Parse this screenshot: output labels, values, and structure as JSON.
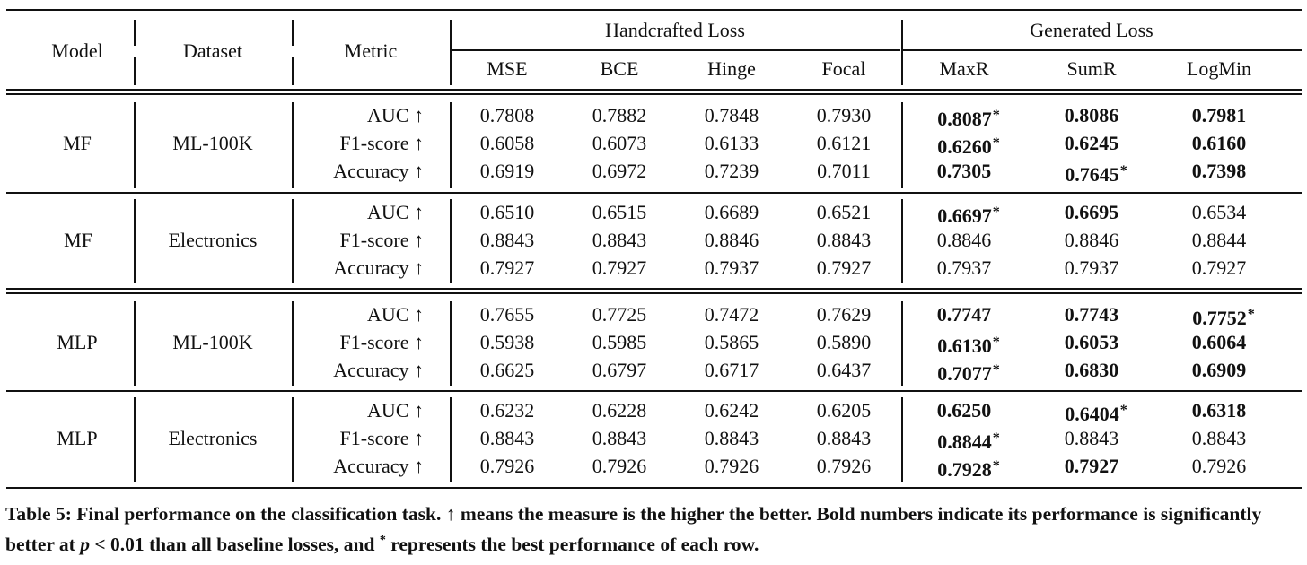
{
  "table": {
    "headers": {
      "model": "Model",
      "dataset": "Dataset",
      "metric": "Metric",
      "group_handcrafted": "Handcrafted Loss",
      "group_generated": "Generated Loss",
      "loss_columns": [
        "MSE",
        "BCE",
        "Hinge",
        "Focal",
        "MaxR",
        "SumR",
        "LogMin"
      ]
    },
    "arrow": "↑",
    "blocks": [
      {
        "model": "MF",
        "dataset": "ML-100K",
        "rows": [
          {
            "metric": "AUC",
            "values": [
              "0.7808",
              "0.7882",
              "0.7848",
              "0.7930",
              "0.8087",
              "0.8086",
              "0.7981"
            ],
            "bold": [
              false,
              false,
              false,
              false,
              true,
              true,
              true
            ],
            "star": [
              false,
              false,
              false,
              false,
              true,
              false,
              false
            ]
          },
          {
            "metric": "F1-score",
            "values": [
              "0.6058",
              "0.6073",
              "0.6133",
              "0.6121",
              "0.6260",
              "0.6245",
              "0.6160"
            ],
            "bold": [
              false,
              false,
              false,
              false,
              true,
              true,
              true
            ],
            "star": [
              false,
              false,
              false,
              false,
              true,
              false,
              false
            ]
          },
          {
            "metric": "Accuracy",
            "values": [
              "0.6919",
              "0.6972",
              "0.7239",
              "0.7011",
              "0.7305",
              "0.7645",
              "0.7398"
            ],
            "bold": [
              false,
              false,
              false,
              false,
              true,
              true,
              true
            ],
            "star": [
              false,
              false,
              false,
              false,
              false,
              true,
              false
            ]
          }
        ]
      },
      {
        "model": "MF",
        "dataset": "Electronics",
        "rows": [
          {
            "metric": "AUC",
            "values": [
              "0.6510",
              "0.6515",
              "0.6689",
              "0.6521",
              "0.6697",
              "0.6695",
              "0.6534"
            ],
            "bold": [
              false,
              false,
              false,
              false,
              true,
              true,
              false
            ],
            "star": [
              false,
              false,
              false,
              false,
              true,
              false,
              false
            ]
          },
          {
            "metric": "F1-score",
            "values": [
              "0.8843",
              "0.8843",
              "0.8846",
              "0.8843",
              "0.8846",
              "0.8846",
              "0.8844"
            ],
            "bold": [
              false,
              false,
              false,
              false,
              false,
              false,
              false
            ],
            "star": [
              false,
              false,
              false,
              false,
              false,
              false,
              false
            ]
          },
          {
            "metric": "Accuracy",
            "values": [
              "0.7927",
              "0.7927",
              "0.7937",
              "0.7927",
              "0.7937",
              "0.7937",
              "0.7927"
            ],
            "bold": [
              false,
              false,
              false,
              false,
              false,
              false,
              false
            ],
            "star": [
              false,
              false,
              false,
              false,
              false,
              false,
              false
            ]
          }
        ]
      },
      {
        "model": "MLP",
        "dataset": "ML-100K",
        "rows": [
          {
            "metric": "AUC",
            "values": [
              "0.7655",
              "0.7725",
              "0.7472",
              "0.7629",
              "0.7747",
              "0.7743",
              "0.7752"
            ],
            "bold": [
              false,
              false,
              false,
              false,
              true,
              true,
              true
            ],
            "star": [
              false,
              false,
              false,
              false,
              false,
              false,
              true
            ]
          },
          {
            "metric": "F1-score",
            "values": [
              "0.5938",
              "0.5985",
              "0.5865",
              "0.5890",
              "0.6130",
              "0.6053",
              "0.6064"
            ],
            "bold": [
              false,
              false,
              false,
              false,
              true,
              true,
              true
            ],
            "star": [
              false,
              false,
              false,
              false,
              true,
              false,
              false
            ]
          },
          {
            "metric": "Accuracy",
            "values": [
              "0.6625",
              "0.6797",
              "0.6717",
              "0.6437",
              "0.7077",
              "0.6830",
              "0.6909"
            ],
            "bold": [
              false,
              false,
              false,
              false,
              true,
              true,
              true
            ],
            "star": [
              false,
              false,
              false,
              false,
              true,
              false,
              false
            ]
          }
        ]
      },
      {
        "model": "MLP",
        "dataset": "Electronics",
        "rows": [
          {
            "metric": "AUC",
            "values": [
              "0.6232",
              "0.6228",
              "0.6242",
              "0.6205",
              "0.6250",
              "0.6404",
              "0.6318"
            ],
            "bold": [
              false,
              false,
              false,
              false,
              true,
              true,
              true
            ],
            "star": [
              false,
              false,
              false,
              false,
              false,
              true,
              false
            ]
          },
          {
            "metric": "F1-score",
            "values": [
              "0.8843",
              "0.8843",
              "0.8843",
              "0.8843",
              "0.8844",
              "0.8843",
              "0.8843"
            ],
            "bold": [
              false,
              false,
              false,
              false,
              true,
              false,
              false
            ],
            "star": [
              false,
              false,
              false,
              false,
              true,
              false,
              false
            ]
          },
          {
            "metric": "Accuracy",
            "values": [
              "0.7926",
              "0.7926",
              "0.7926",
              "0.7926",
              "0.7928",
              "0.7927",
              "0.7926"
            ],
            "bold": [
              false,
              false,
              false,
              false,
              true,
              true,
              false
            ],
            "star": [
              false,
              false,
              false,
              false,
              true,
              false,
              false
            ]
          }
        ]
      }
    ],
    "star_symbol": "*"
  },
  "caption": {
    "part1": "Table 5: Final performance on the classification task. ↑ means the measure is the higher the better. Bold numbers indicate its performance is significantly better at ",
    "p_symbol": "p",
    "part2": " < 0.01 than all baseline losses, and ",
    "star": "*",
    "part3": " represents the best performance of each row."
  }
}
